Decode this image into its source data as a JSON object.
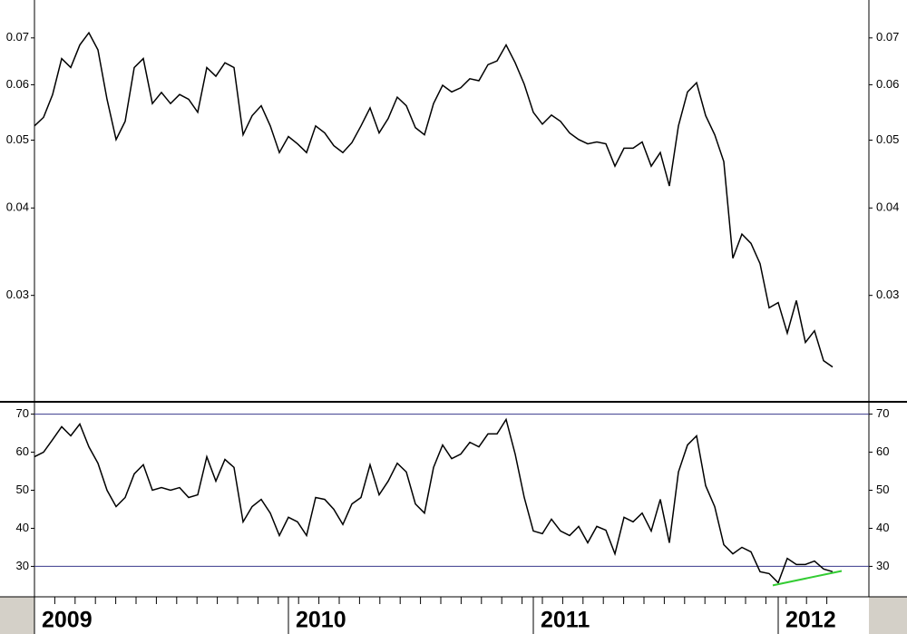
{
  "chart_data": [
    {
      "type": "line",
      "log_scale": true,
      "color": "#000000",
      "categories": [
        "2009",
        null,
        null,
        null,
        null,
        null,
        null,
        null,
        null,
        null,
        null,
        null,
        null,
        null,
        null,
        null,
        null,
        null,
        null,
        null,
        null,
        null,
        null,
        null,
        null,
        null,
        null,
        null,
        "2010",
        null,
        null,
        null,
        null,
        null,
        null,
        null,
        null,
        null,
        null,
        null,
        null,
        null,
        null,
        null,
        null,
        null,
        null,
        null,
        null,
        null,
        null,
        null,
        null,
        null,
        null,
        "2011",
        null,
        null,
        null,
        null,
        null,
        null,
        null,
        null,
        null,
        null,
        null,
        null,
        null,
        null,
        null,
        null,
        null,
        null,
        null,
        null,
        null,
        null,
        null,
        null,
        null,
        null,
        "2012",
        null,
        null,
        null,
        null,
        null,
        null
      ],
      "values": [
        0.0524,
        0.0539,
        0.0581,
        0.0654,
        0.0635,
        0.0684,
        0.0712,
        0.0673,
        0.0572,
        0.0501,
        0.0532,
        0.0635,
        0.0654,
        0.0564,
        0.0585,
        0.0564,
        0.0581,
        0.0572,
        0.0548,
        0.0635,
        0.0617,
        0.0645,
        0.0635,
        0.0509,
        0.0542,
        0.056,
        0.0524,
        0.048,
        0.0506,
        0.0494,
        0.048,
        0.0524,
        0.0512,
        0.0491,
        0.048,
        0.0496,
        0.0524,
        0.0556,
        0.0512,
        0.0537,
        0.0576,
        0.056,
        0.0521,
        0.0509,
        0.0564,
        0.0599,
        0.0586,
        0.0594,
        0.0612,
        0.0608,
        0.0641,
        0.0649,
        0.0684,
        0.0645,
        0.0601,
        0.0548,
        0.0527,
        0.0543,
        0.0532,
        0.0512,
        0.0501,
        0.0494,
        0.0497,
        0.0494,
        0.0459,
        0.0487,
        0.0487,
        0.0497,
        0.0459,
        0.048,
        0.043,
        0.0524,
        0.0586,
        0.0604,
        0.0542,
        0.0509,
        0.0466,
        0.0339,
        0.0367,
        0.0356,
        0.0333,
        0.0288,
        0.0293,
        0.0265,
        0.0295,
        0.0257,
        0.0267,
        0.0242,
        0.0237
      ],
      "ylim": [
        0.0212,
        0.0793
      ],
      "yticks": [
        0.03,
        0.04,
        0.05,
        0.06,
        0.07
      ]
    },
    {
      "type": "line",
      "color": "#000000",
      "values": [
        58.8,
        60.0,
        63.3,
        66.7,
        64.3,
        67.4,
        61.4,
        57.1,
        50.0,
        45.7,
        48.1,
        54.3,
        56.7,
        50.0,
        50.7,
        50.0,
        50.7,
        48.1,
        48.8,
        58.8,
        52.4,
        58.1,
        56.0,
        41.7,
        45.7,
        47.6,
        44.0,
        38.1,
        42.9,
        41.7,
        38.1,
        48.1,
        47.6,
        45.0,
        41.0,
        46.4,
        48.1,
        56.7,
        48.8,
        52.4,
        57.1,
        54.8,
        46.4,
        44.0,
        56.0,
        61.9,
        58.3,
        59.5,
        62.6,
        61.4,
        64.8,
        64.8,
        68.6,
        59.5,
        48.1,
        39.3,
        38.6,
        42.4,
        39.3,
        38.1,
        40.5,
        36.2,
        40.5,
        39.5,
        33.3,
        42.9,
        41.7,
        44.0,
        39.3,
        47.6,
        36.2,
        54.8,
        61.9,
        64.3,
        51.2,
        45.7,
        35.7,
        33.3,
        35.0,
        33.8,
        28.6,
        28.1,
        25.7,
        32.1,
        30.5,
        30.5,
        31.4,
        29.3,
        28.6
      ],
      "ylim": [
        22,
        73
      ],
      "yticks": [
        30,
        40,
        50,
        60,
        70
      ],
      "hlines": [
        30,
        70
      ],
      "hline_color": "#3a3a8c",
      "trendline": {
        "color": "#33cc33",
        "x": [
          81.4,
          89
        ],
        "y": [
          25.0,
          28.8
        ]
      }
    }
  ]
}
